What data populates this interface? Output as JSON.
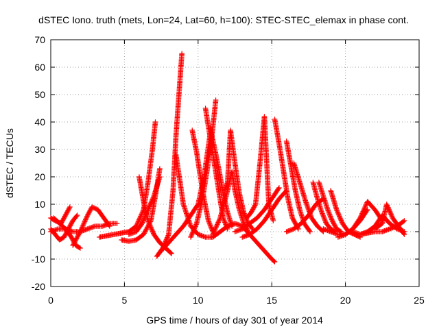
{
  "chart_data": {
    "type": "scatter",
    "title": "dSTEC Iono. truth (mets, Lon=24, Lat=60, h=100): STEC-STEC_elemax in phase cont.",
    "xlabel": "GPS time / hours of day 301 of year 2014",
    "ylabel": "dSTEC  / TECUs",
    "xlim": [
      0,
      25
    ],
    "ylim": [
      -20,
      70
    ],
    "xticks": [
      0,
      5,
      10,
      15,
      20,
      25
    ],
    "yticks": [
      -20,
      -10,
      0,
      10,
      20,
      30,
      40,
      50,
      60,
      70
    ],
    "grid": true,
    "marker": "plus",
    "color": "#ff0000",
    "series": [
      {
        "x": [
          0.0,
          0.3,
          0.7,
          1.0,
          1.3
        ],
        "y": [
          5,
          4,
          3,
          6,
          9
        ]
      },
      {
        "x": [
          0.0,
          0.3,
          0.6,
          0.9,
          1.2,
          1.5,
          1.8
        ],
        "y": [
          1,
          -1,
          -3,
          -2,
          1,
          4,
          6
        ]
      },
      {
        "x": [
          0.2,
          0.6,
          1.0,
          1.4,
          1.7,
          2.0
        ],
        "y": [
          5,
          3,
          1,
          -2,
          -5,
          -6
        ]
      },
      {
        "x": [
          1.5,
          2.0,
          2.5,
          2.8,
          3.2,
          3.6,
          4.0
        ],
        "y": [
          -5,
          0,
          6,
          9,
          8,
          5,
          2
        ]
      },
      {
        "x": [
          0.0,
          0.5,
          1.0,
          1.5,
          2.0,
          2.5,
          3.0,
          3.5,
          4.0,
          4.5
        ],
        "y": [
          0,
          1,
          1,
          0,
          0,
          1,
          2,
          2,
          3,
          3
        ]
      },
      {
        "x": [
          3.3,
          3.8,
          4.3,
          4.8,
          5.3,
          5.8,
          6.3,
          6.6,
          6.9,
          7.1
        ],
        "y": [
          -2,
          -1.5,
          -1,
          -0.5,
          0,
          2,
          8,
          18,
          30,
          40
        ]
      },
      {
        "x": [
          4.8,
          5.3,
          5.8,
          6.3,
          6.8,
          7.1,
          7.4
        ],
        "y": [
          -3,
          -3.5,
          -3,
          -1,
          4,
          13,
          23
        ]
      },
      {
        "x": [
          5.3,
          5.8,
          6.2,
          6.6,
          7.0,
          7.4
        ],
        "y": [
          -1,
          0,
          3,
          8,
          13,
          20
        ]
      },
      {
        "x": [
          6.0,
          6.3,
          6.6,
          7.0,
          7.4,
          7.8,
          8.2
        ],
        "y": [
          20,
          11,
          4,
          -1,
          -4,
          -6,
          -8
        ]
      },
      {
        "x": [
          7.2,
          7.6,
          8.0,
          8.3,
          8.5,
          8.7,
          8.9
        ],
        "y": [
          -9,
          -6,
          -1,
          15,
          35,
          50,
          65
        ]
      },
      {
        "x": [
          8.5,
          9.0,
          9.5,
          10.0,
          10.5,
          11.0
        ],
        "y": [
          28,
          10,
          2,
          -1,
          -2,
          -2
        ]
      },
      {
        "x": [
          7.5,
          8.0,
          8.5,
          9.0,
          9.5,
          10.0,
          10.4,
          10.8
        ],
        "y": [
          -7,
          -4,
          -1,
          2,
          6,
          10,
          20,
          35
        ]
      },
      {
        "x": [
          9.6,
          9.9,
          10.1,
          10.4,
          10.7,
          11.0
        ],
        "y": [
          37,
          29,
          22,
          12,
          4,
          0
        ]
      },
      {
        "x": [
          9.5,
          9.9,
          10.3,
          10.6,
          10.9,
          11.2
        ],
        "y": [
          -2,
          3,
          12,
          22,
          33,
          48
        ]
      },
      {
        "x": [
          10.5,
          10.8,
          11.1,
          11.4,
          11.7,
          12.0
        ],
        "y": [
          45,
          35,
          25,
          15,
          5,
          1
        ]
      },
      {
        "x": [
          10.8,
          11.1,
          11.4,
          11.7,
          12.0,
          12.3
        ],
        "y": [
          38,
          31,
          23,
          14,
          7,
          2
        ]
      },
      {
        "x": [
          11.0,
          11.5,
          12.0,
          12.5,
          13.0,
          13.5,
          14.0,
          14.5,
          15.0,
          15.2
        ],
        "y": [
          -2,
          0,
          2,
          3,
          2,
          -1,
          -4,
          -7,
          -10,
          -11
        ]
      },
      {
        "x": [
          11.0,
          11.5,
          12.0,
          12.3,
          12.5,
          12.8,
          13.1,
          13.4
        ],
        "y": [
          -1,
          5,
          15,
          22,
          15,
          8,
          3,
          0
        ]
      },
      {
        "x": [
          11.8,
          12.0,
          12.2,
          12.5,
          12.8,
          13.1,
          13.4,
          13.7
        ],
        "y": [
          15,
          18,
          37,
          25,
          14,
          7,
          3,
          1
        ]
      },
      {
        "x": [
          13.0,
          13.5,
          14.0,
          14.5,
          15.0,
          15.5,
          16.0
        ],
        "y": [
          -2,
          -1,
          1,
          4,
          8,
          12,
          15
        ]
      },
      {
        "x": [
          12.5,
          13.0,
          13.5,
          14.0,
          14.5,
          15.0,
          15.5
        ],
        "y": [
          0,
          1,
          3,
          5,
          8,
          12,
          16
        ]
      },
      {
        "x": [
          13.3,
          13.6,
          13.9,
          14.2,
          14.5,
          14.8,
          15.1
        ],
        "y": [
          5,
          7,
          10,
          25,
          42,
          10,
          4
        ]
      },
      {
        "x": [
          15.2,
          15.5,
          15.8,
          16.1,
          16.4,
          16.8
        ],
        "y": [
          41,
          32,
          22,
          12,
          5,
          1
        ]
      },
      {
        "x": [
          16.0,
          16.3,
          16.6,
          16.9,
          17.2,
          17.6
        ],
        "y": [
          33,
          24,
          15,
          8,
          3,
          0
        ]
      },
      {
        "x": [
          16.5,
          16.9,
          17.3,
          17.7,
          18.1,
          18.5
        ],
        "y": [
          25,
          18,
          11,
          5,
          2,
          0
        ]
      },
      {
        "x": [
          16.0,
          16.5,
          17.0,
          17.5,
          18.0,
          18.5
        ],
        "y": [
          0,
          1,
          3,
          6,
          10,
          12
        ]
      },
      {
        "x": [
          17.8,
          18.1,
          18.4,
          18.7,
          19.0,
          19.3
        ],
        "y": [
          18,
          12,
          7,
          3,
          1,
          0
        ]
      },
      {
        "x": [
          18.2,
          18.5,
          18.8,
          19.1,
          19.4,
          19.7
        ],
        "y": [
          18,
          13,
          8,
          4,
          1,
          0
        ]
      },
      {
        "x": [
          19.0,
          19.4,
          19.8,
          20.2,
          20.6,
          21.0
        ],
        "y": [
          15,
          8,
          3,
          0,
          -1,
          -2
        ]
      },
      {
        "x": [
          18.5,
          19.0,
          19.5,
          20.0,
          20.5,
          21.0,
          21.5
        ],
        "y": [
          1,
          0,
          -1,
          -1,
          1,
          4,
          8
        ]
      },
      {
        "x": [
          19.5,
          20.0,
          20.5,
          21.0,
          21.5,
          22.0,
          22.5
        ],
        "y": [
          -2,
          -1,
          1,
          5,
          11,
          8,
          4
        ]
      },
      {
        "x": [
          20.5,
          21.0,
          21.5,
          22.0,
          22.5,
          23.0,
          23.5,
          24.0
        ],
        "y": [
          0,
          -1,
          0,
          2,
          6,
          3,
          1,
          0
        ]
      },
      {
        "x": [
          21.0,
          21.5,
          22.0,
          22.5,
          23.0,
          23.5,
          24.0
        ],
        "y": [
          -1,
          -0.5,
          0,
          0,
          1,
          2,
          4
        ]
      },
      {
        "x": [
          22.0,
          22.5,
          22.8,
          23.2,
          23.6,
          24.0
        ],
        "y": [
          1,
          3,
          10,
          5,
          2,
          -1
        ]
      }
    ]
  }
}
